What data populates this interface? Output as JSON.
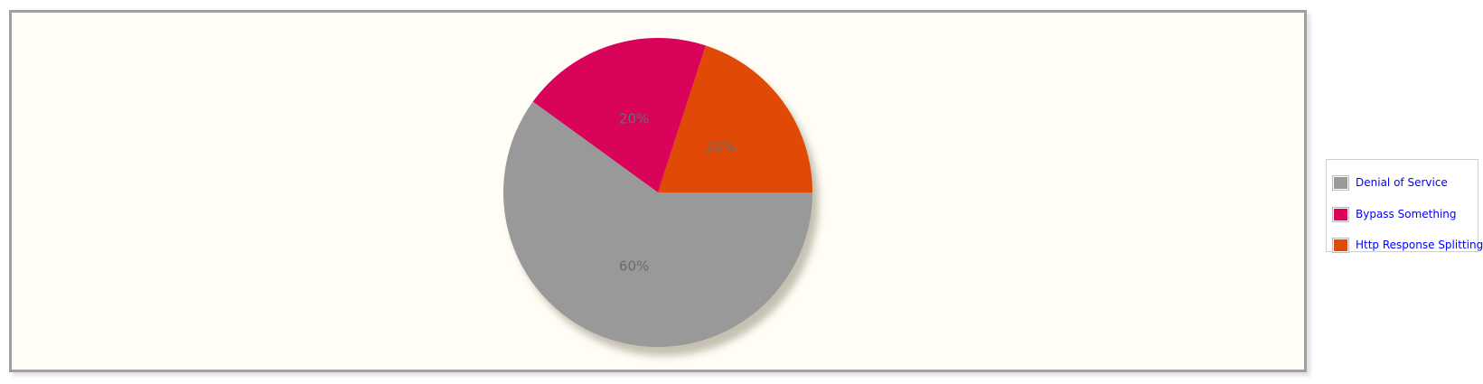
{
  "chart_data": {
    "type": "pie",
    "slices": [
      {
        "name": "Http Response Splitting",
        "value": 20,
        "label": "20%",
        "color": "#e04a06"
      },
      {
        "name": "Bypass Something",
        "value": 20,
        "label": "20%",
        "color": "#d9045a"
      },
      {
        "name": "Denial of Service",
        "value": 60,
        "label": "60%",
        "color": "#999999"
      }
    ],
    "legend": {
      "position": "right",
      "entries": [
        {
          "name": "Denial of Service",
          "color": "#999999"
        },
        {
          "name": "Bypass Something",
          "color": "#d9045a"
        },
        {
          "name": "Http Response Splitting",
          "color": "#e04a06"
        }
      ]
    }
  },
  "colors": {
    "plot_background": "#fffdf6",
    "frame_border": "#a0a0a0",
    "legend_text": "#0000ff",
    "slice_label_text": "#6b6b6b"
  }
}
